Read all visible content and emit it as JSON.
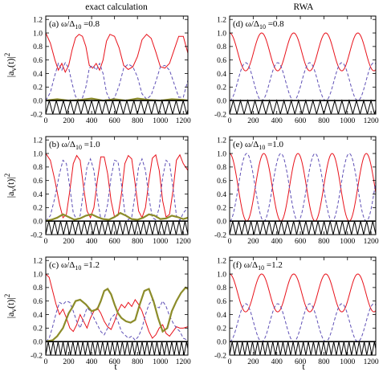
{
  "columns": {
    "left_title": "exact calculation",
    "right_title": "RWA"
  },
  "ylabel": "|a_v(t)|^2",
  "xlabel": "t",
  "colors": {
    "red": "#e8111a",
    "purple": "#5e4fb5",
    "olive": "#8c8c2a",
    "black": "#000000"
  },
  "chart_data": [
    {
      "id": "a",
      "type": "line",
      "label_letter": "(a)",
      "label_ratio": "=0.8",
      "column": "exact",
      "x_ticks": [
        0,
        200,
        400,
        600,
        800,
        1000,
        1200
      ],
      "xlim": [
        0,
        1240
      ],
      "y_ticks": [
        "-0.2",
        "0.0",
        "0.2",
        "0.4",
        "0.6",
        "0.8",
        "1.0",
        "1.2"
      ],
      "ylim": [
        -0.2,
        1.25
      ],
      "series": [
        {
          "color_key": "red",
          "dash": false,
          "x": [
            0,
            40,
            80,
            110,
            140,
            170,
            200,
            230,
            260,
            290,
            320,
            350,
            380,
            410,
            440,
            470,
            500,
            530,
            560,
            600,
            640,
            680,
            720,
            760,
            800,
            840,
            880,
            920,
            960,
            1000,
            1040,
            1080,
            1120,
            1160,
            1200,
            1240
          ],
          "y": [
            1.0,
            0.85,
            0.6,
            0.45,
            0.55,
            0.42,
            0.52,
            0.75,
            0.93,
            0.98,
            0.95,
            0.8,
            0.52,
            0.48,
            0.55,
            0.45,
            0.6,
            0.88,
            0.98,
            0.95,
            0.78,
            0.52,
            0.46,
            0.5,
            0.65,
            0.9,
            0.98,
            0.92,
            0.72,
            0.5,
            0.48,
            0.55,
            0.75,
            0.95,
            0.95,
            0.7
          ]
        },
        {
          "color_key": "purple",
          "dash": true,
          "x": [
            0,
            40,
            80,
            110,
            140,
            170,
            200,
            230,
            260,
            290,
            320,
            350,
            380,
            410,
            440,
            470,
            500,
            530,
            560,
            600,
            640,
            680,
            720,
            760,
            800,
            840,
            880,
            920,
            960,
            1000,
            1040,
            1080,
            1120,
            1160,
            1200,
            1240
          ],
          "y": [
            0.0,
            0.12,
            0.38,
            0.55,
            0.45,
            0.56,
            0.48,
            0.25,
            0.06,
            0.01,
            0.04,
            0.2,
            0.48,
            0.52,
            0.45,
            0.55,
            0.4,
            0.12,
            0.01,
            0.04,
            0.22,
            0.48,
            0.54,
            0.5,
            0.35,
            0.1,
            0.02,
            0.08,
            0.28,
            0.5,
            0.52,
            0.45,
            0.25,
            0.05,
            0.05,
            0.3
          ]
        },
        {
          "color_key": "olive",
          "dash": false,
          "x": [
            0,
            100,
            200,
            300,
            400,
            500,
            600,
            700,
            800,
            900,
            1000,
            1100,
            1200,
            1240
          ],
          "y": [
            0.0,
            0.02,
            0.0,
            0.01,
            0.03,
            0.0,
            0.02,
            0.0,
            0.03,
            0.01,
            0.0,
            0.02,
            0.01,
            0.0
          ]
        },
        {
          "color_key": "black",
          "dash": false,
          "x": [
            0,
            1240
          ],
          "y": [
            0,
            0
          ]
        }
      ],
      "sawtooth": {
        "period": 61.5,
        "low": -0.2,
        "high": 0.0
      }
    },
    {
      "id": "d",
      "type": "line",
      "label_letter": "(d)",
      "label_ratio": "=0.8",
      "column": "rwa",
      "x_ticks": [
        0,
        200,
        400,
        600,
        800,
        1000,
        1200
      ],
      "xlim": [
        0,
        1240
      ],
      "y_ticks": [
        "-0.2",
        "0.0",
        "0.2",
        "0.4",
        "0.6",
        "0.8",
        "1.0",
        "1.2"
      ],
      "ylim": [
        -0.2,
        1.25
      ],
      "series": [
        {
          "color_key": "red",
          "dash": false,
          "formula": "0.72+0.28*cos(2*pi*t/272)"
        },
        {
          "color_key": "purple",
          "dash": true,
          "formula": "0.28-0.28*cos(2*pi*t/272)"
        },
        {
          "color_key": "black",
          "dash": false,
          "x": [
            0,
            1240
          ],
          "y": [
            0,
            0
          ]
        }
      ],
      "sawtooth": {
        "period": 61.5,
        "low": -0.2,
        "high": 0.0
      }
    },
    {
      "id": "b",
      "type": "line",
      "label_letter": "(b)",
      "label_ratio": "=1.0",
      "column": "exact",
      "x_ticks": [
        0,
        200,
        400,
        600,
        800,
        1000,
        1200
      ],
      "xlim": [
        0,
        1240
      ],
      "y_ticks": [
        "-0.2",
        "0.0",
        "0.2",
        "0.4",
        "0.6",
        "0.8",
        "1.0",
        "1.2"
      ],
      "ylim": [
        -0.2,
        1.25
      ],
      "series": [
        {
          "color_key": "red",
          "dash": false,
          "x": [
            0,
            40,
            80,
            120,
            150,
            180,
            210,
            240,
            270,
            300,
            330,
            360,
            390,
            420,
            450,
            480,
            510,
            540,
            570,
            600,
            630,
            660,
            690,
            720,
            750,
            780,
            810,
            840,
            870,
            900,
            930,
            960,
            990,
            1020,
            1050,
            1080,
            1110,
            1140,
            1170,
            1200,
            1240
          ],
          "y": [
            1.0,
            0.9,
            0.6,
            0.25,
            0.05,
            0.1,
            0.45,
            0.85,
            0.97,
            0.9,
            0.5,
            0.15,
            0.05,
            0.2,
            0.6,
            0.95,
            0.95,
            0.7,
            0.3,
            0.06,
            0.08,
            0.4,
            0.85,
            0.97,
            0.92,
            0.55,
            0.15,
            0.05,
            0.2,
            0.6,
            0.93,
            0.98,
            0.75,
            0.3,
            0.06,
            0.1,
            0.45,
            0.9,
            0.98,
            0.85,
            0.75
          ]
        },
        {
          "color_key": "purple",
          "dash": true,
          "x": [
            0,
            40,
            80,
            120,
            150,
            180,
            210,
            240,
            270,
            300,
            330,
            360,
            390,
            420,
            450,
            480,
            510,
            540,
            570,
            600,
            630,
            660,
            690,
            720,
            750,
            780,
            810,
            840,
            870,
            900,
            930,
            960,
            990,
            1020,
            1050,
            1080,
            1110,
            1140,
            1170,
            1200,
            1240
          ],
          "y": [
            0.0,
            0.08,
            0.35,
            0.7,
            0.9,
            0.85,
            0.5,
            0.12,
            0.02,
            0.08,
            0.45,
            0.8,
            0.92,
            0.75,
            0.35,
            0.03,
            0.03,
            0.25,
            0.65,
            0.9,
            0.88,
            0.55,
            0.12,
            0.02,
            0.06,
            0.4,
            0.8,
            0.92,
            0.75,
            0.35,
            0.05,
            0.02,
            0.2,
            0.65,
            0.9,
            0.85,
            0.5,
            0.08,
            0.01,
            0.12,
            0.2
          ]
        },
        {
          "color_key": "olive",
          "dash": false,
          "x": [
            0,
            50,
            100,
            150,
            200,
            250,
            300,
            350,
            400,
            450,
            500,
            550,
            600,
            650,
            700,
            750,
            800,
            850,
            900,
            950,
            1000,
            1050,
            1100,
            1150,
            1200,
            1240
          ],
          "y": [
            0.0,
            0.02,
            0.05,
            0.1,
            0.06,
            0.02,
            0.04,
            0.08,
            0.1,
            0.06,
            0.03,
            0.02,
            0.06,
            0.12,
            0.08,
            0.03,
            0.02,
            0.05,
            0.1,
            0.08,
            0.03,
            0.04,
            0.08,
            0.06,
            0.03,
            0.05
          ]
        },
        {
          "color_key": "black",
          "dash": false,
          "x": [
            0,
            1240
          ],
          "y": [
            0,
            0
          ]
        }
      ],
      "sawtooth": {
        "period": 51.7,
        "low": -0.2,
        "high": 0.0
      }
    },
    {
      "id": "e",
      "type": "line",
      "label_letter": "(e)",
      "label_ratio": "=1.0",
      "column": "rwa",
      "x_ticks": [
        0,
        200,
        400,
        600,
        800,
        1000,
        1200
      ],
      "xlim": [
        0,
        1240
      ],
      "y_ticks": [
        "-0.2",
        "0.0",
        "0.2",
        "0.4",
        "0.6",
        "0.8",
        "1.0",
        "1.2"
      ],
      "ylim": [
        -0.2,
        1.25
      ],
      "series": [
        {
          "color_key": "red",
          "dash": false,
          "formula": "0.5+0.5*cos(2*pi*t/290)"
        },
        {
          "color_key": "purple",
          "dash": true,
          "formula": "0.5-0.5*cos(2*pi*t/290)"
        },
        {
          "color_key": "black",
          "dash": false,
          "x": [
            0,
            1240
          ],
          "y": [
            0,
            0
          ]
        }
      ],
      "sawtooth": {
        "period": 51.7,
        "low": -0.2,
        "high": 0.0
      }
    },
    {
      "id": "c",
      "type": "line",
      "label_letter": "(c)",
      "label_ratio": "=1.2",
      "column": "exact",
      "x_ticks": [
        0,
        200,
        400,
        600,
        800,
        1000,
        1200
      ],
      "xlim": [
        0,
        1240
      ],
      "y_ticks": [
        "-0.2",
        "0.0",
        "0.2",
        "0.4",
        "0.6",
        "0.8",
        "1.0",
        "1.2"
      ],
      "ylim": [
        -0.2,
        1.25
      ],
      "series": [
        {
          "color_key": "red",
          "dash": false,
          "x": [
            0,
            30,
            60,
            90,
            120,
            150,
            180,
            210,
            240,
            270,
            300,
            330,
            360,
            390,
            420,
            450,
            480,
            510,
            540,
            570,
            600,
            630,
            660,
            690,
            720,
            750,
            780,
            810,
            840,
            870,
            900,
            930,
            960,
            990,
            1020,
            1050,
            1080,
            1110,
            1140,
            1170,
            1200,
            1240
          ],
          "y": [
            1.0,
            0.95,
            0.75,
            0.55,
            0.4,
            0.48,
            0.35,
            0.2,
            0.15,
            0.25,
            0.4,
            0.3,
            0.2,
            0.35,
            0.45,
            0.5,
            0.42,
            0.3,
            0.22,
            0.18,
            0.3,
            0.45,
            0.55,
            0.5,
            0.58,
            0.52,
            0.62,
            0.55,
            0.45,
            0.3,
            0.15,
            0.05,
            0.1,
            0.2,
            0.25,
            0.12,
            0.08,
            0.15,
            0.22,
            0.2,
            0.2,
            0.22
          ]
        },
        {
          "color_key": "purple",
          "dash": true,
          "x": [
            0,
            30,
            60,
            90,
            120,
            150,
            180,
            210,
            240,
            270,
            300,
            330,
            360,
            390,
            420,
            450,
            480,
            510,
            540,
            570,
            600,
            630,
            660,
            690,
            720,
            750,
            780,
            810,
            840,
            870,
            900,
            930,
            960,
            990,
            1020,
            1050,
            1080,
            1110,
            1140,
            1170,
            1200,
            1240
          ],
          "y": [
            0.0,
            0.05,
            0.22,
            0.42,
            0.58,
            0.55,
            0.6,
            0.58,
            0.45,
            0.3,
            0.2,
            0.35,
            0.5,
            0.45,
            0.35,
            0.25,
            0.15,
            0.1,
            0.2,
            0.35,
            0.4,
            0.3,
            0.15,
            0.1,
            0.05,
            0.08,
            0.02,
            0.08,
            0.2,
            0.4,
            0.55,
            0.62,
            0.52,
            0.5,
            0.6,
            0.52,
            0.38,
            0.28,
            0.2,
            0.15,
            0.05,
            0.02
          ]
        },
        {
          "color_key": "olive",
          "dash": false,
          "x": [
            0,
            60,
            100,
            150,
            200,
            230,
            260,
            300,
            350,
            400,
            450,
            480,
            510,
            540,
            570,
            600,
            630,
            660,
            700,
            740,
            780,
            820,
            860,
            900,
            940,
            980,
            1020,
            1060,
            1100,
            1140,
            1180,
            1220,
            1240
          ],
          "y": [
            0.0,
            0.02,
            0.08,
            0.2,
            0.42,
            0.5,
            0.6,
            0.62,
            0.55,
            0.45,
            0.48,
            0.6,
            0.75,
            0.78,
            0.7,
            0.55,
            0.42,
            0.35,
            0.3,
            0.28,
            0.32,
            0.55,
            0.75,
            0.78,
            0.6,
            0.35,
            0.15,
            0.2,
            0.45,
            0.6,
            0.72,
            0.8,
            0.78
          ]
        },
        {
          "color_key": "black",
          "dash": false,
          "x": [
            0,
            1240
          ],
          "y": [
            0,
            0
          ]
        }
      ],
      "sawtooth": {
        "period": 43.1,
        "low": -0.2,
        "high": 0.0
      }
    },
    {
      "id": "f",
      "type": "line",
      "label_letter": "(f)",
      "label_ratio": "=1.2",
      "column": "rwa",
      "x_ticks": [
        0,
        200,
        400,
        600,
        800,
        1000,
        1200
      ],
      "xlim": [
        0,
        1240
      ],
      "y_ticks": [
        "-0.2",
        "0.0",
        "0.2",
        "0.4",
        "0.6",
        "0.8",
        "1.0",
        "1.2"
      ],
      "ylim": [
        -0.2,
        1.25
      ],
      "series": [
        {
          "color_key": "red",
          "dash": false,
          "formula": "0.72+0.28*cos(2*pi*t/272)"
        },
        {
          "color_key": "purple",
          "dash": true,
          "formula": "0.28-0.28*cos(2*pi*t/272)"
        },
        {
          "color_key": "black",
          "dash": false,
          "x": [
            0,
            1240
          ],
          "y": [
            0,
            0
          ]
        }
      ],
      "sawtooth": {
        "period": 43.1,
        "low": -0.2,
        "high": 0.0
      }
    }
  ]
}
